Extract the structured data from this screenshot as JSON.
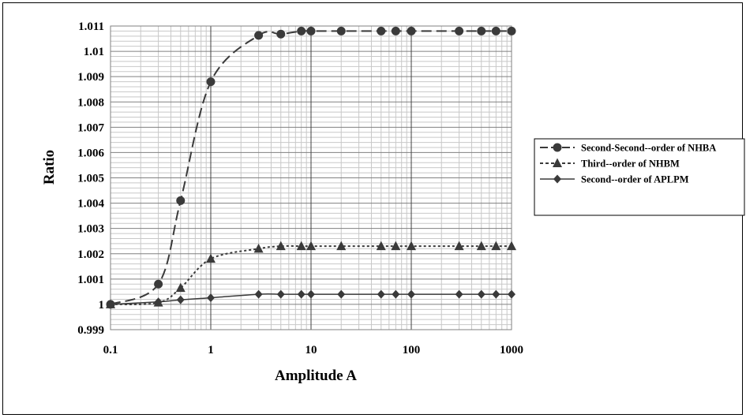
{
  "chart_data": {
    "type": "line",
    "x_scale": "log",
    "xlabel": "Amplitude A",
    "ylabel": "Ratio",
    "xlim": [
      0.1,
      1000
    ],
    "ylim": [
      0.999,
      1.011
    ],
    "x_ticks": [
      "0.1",
      "1",
      "10",
      "100",
      "1000"
    ],
    "y_ticks": [
      "0.999",
      "1",
      "1.001",
      "1.002",
      "1.003",
      "1.004",
      "1.005",
      "1.006",
      "1.007",
      "1.008",
      "1.009",
      "1.01",
      "1.011"
    ],
    "grid": true,
    "legend_position": "right",
    "series": [
      {
        "name": "Second-Second--order of NHBA",
        "marker": "circle",
        "dash": "long-dash",
        "points": [
          [
            0.1,
            1.0
          ],
          [
            0.3,
            1.0008
          ],
          [
            0.5,
            1.0041
          ],
          [
            1,
            1.0088
          ],
          [
            3,
            1.01063
          ],
          [
            5,
            1.01068
          ],
          [
            8,
            1.0108
          ],
          [
            10,
            1.0108
          ],
          [
            20,
            1.0108
          ],
          [
            50,
            1.0108
          ],
          [
            70,
            1.0108
          ],
          [
            100,
            1.0108
          ],
          [
            300,
            1.0108
          ],
          [
            500,
            1.0108
          ],
          [
            700,
            1.0108
          ],
          [
            1000,
            1.0108
          ]
        ]
      },
      {
        "name": "Third--order of NHBM",
        "marker": "triangle",
        "dash": "dotted",
        "points": [
          [
            0.1,
            1.0
          ],
          [
            0.3,
            1.00007
          ],
          [
            0.5,
            1.00065
          ],
          [
            1,
            1.0018
          ],
          [
            3,
            1.0022
          ],
          [
            5,
            1.0023
          ],
          [
            8,
            1.0023
          ],
          [
            10,
            1.0023
          ],
          [
            20,
            1.0023
          ],
          [
            50,
            1.0023
          ],
          [
            70,
            1.0023
          ],
          [
            100,
            1.0023
          ],
          [
            300,
            1.0023
          ],
          [
            500,
            1.0023
          ],
          [
            700,
            1.0023
          ],
          [
            1000,
            1.0023
          ]
        ]
      },
      {
        "name": "Second--order of APLPM",
        "marker": "diamond",
        "dash": "solid",
        "points": [
          [
            0.1,
            1.0
          ],
          [
            0.3,
            1.0001
          ],
          [
            0.5,
            1.00018
          ],
          [
            1,
            1.00026
          ],
          [
            3,
            1.0004
          ],
          [
            5,
            1.0004
          ],
          [
            8,
            1.0004
          ],
          [
            10,
            1.0004
          ],
          [
            20,
            1.0004
          ],
          [
            50,
            1.0004
          ],
          [
            70,
            1.0004
          ],
          [
            100,
            1.0004
          ],
          [
            300,
            1.0004
          ],
          [
            500,
            1.0004
          ],
          [
            700,
            1.0004
          ],
          [
            1000,
            1.0004
          ]
        ]
      }
    ]
  }
}
